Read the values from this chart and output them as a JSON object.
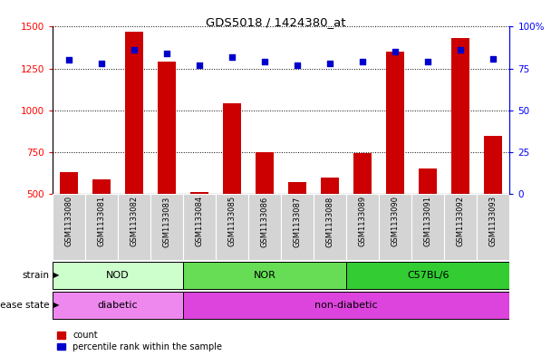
{
  "title": "GDS5018 / 1424380_at",
  "categories": [
    "GSM1133080",
    "GSM1133081",
    "GSM1133082",
    "GSM1133083",
    "GSM1133084",
    "GSM1133085",
    "GSM1133086",
    "GSM1133087",
    "GSM1133088",
    "GSM1133089",
    "GSM1133090",
    "GSM1133091",
    "GSM1133092",
    "GSM1133093"
  ],
  "counts": [
    630,
    585,
    1470,
    1290,
    510,
    1040,
    750,
    570,
    600,
    745,
    1350,
    650,
    1430,
    845
  ],
  "percentile_ranks": [
    80,
    78,
    86,
    84,
    77,
    82,
    79,
    77,
    78,
    79,
    85,
    79,
    86,
    81
  ],
  "ylim_left": [
    500,
    1500
  ],
  "ylim_right": [
    0,
    100
  ],
  "yticks_left": [
    500,
    750,
    1000,
    1250,
    1500
  ],
  "yticks_right": [
    0,
    25,
    50,
    75,
    100
  ],
  "bar_color": "#cc0000",
  "dot_color": "#0000cc",
  "strain_groups": [
    {
      "label": "NOD",
      "start": 0,
      "end": 4,
      "color": "#ccffcc"
    },
    {
      "label": "NOR",
      "start": 4,
      "end": 9,
      "color": "#66dd55"
    },
    {
      "label": "C57BL/6",
      "start": 9,
      "end": 14,
      "color": "#33cc33"
    }
  ],
  "disease_groups": [
    {
      "label": "diabetic",
      "start": 0,
      "end": 4,
      "color": "#ee88ee"
    },
    {
      "label": "non-diabetic",
      "start": 4,
      "end": 14,
      "color": "#dd44dd"
    }
  ],
  "strain_label": "strain",
  "disease_label": "disease state",
  "legend_count_label": "count",
  "legend_pct_label": "percentile rank within the sample",
  "bg_color": "#ffffff",
  "xtick_bg": "#d4d4d4"
}
